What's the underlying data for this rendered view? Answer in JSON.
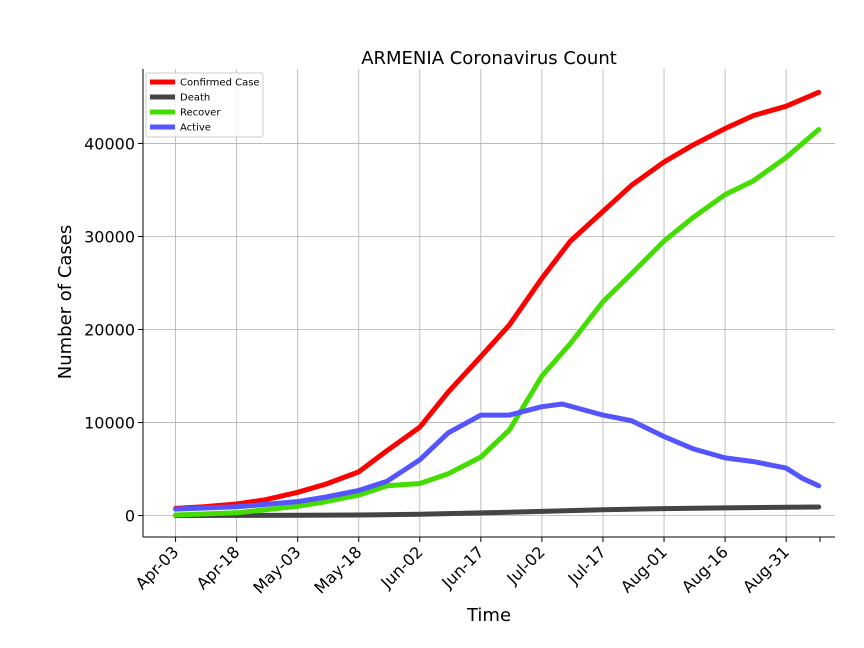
{
  "chart_data": {
    "type": "line",
    "title": "ARMENIA Coronavirus Count",
    "xlabel": "Time",
    "ylabel": "Number of Cases",
    "x_start": "2020-04-03",
    "x_end": "2020-09-08",
    "x_ticks": [
      "Apr-03",
      "Apr-18",
      "May-03",
      "May-18",
      "Jun-02",
      "Jun-17",
      "Jul-02",
      "Jul-17",
      "Aug-01",
      "Aug-16",
      "Aug-31"
    ],
    "x_tick_dates": [
      "2020-04-03",
      "2020-04-18",
      "2020-05-03",
      "2020-05-18",
      "2020-06-02",
      "2020-06-17",
      "2020-07-02",
      "2020-07-17",
      "2020-08-01",
      "2020-08-16",
      "2020-08-31"
    ],
    "y_ticks": [
      0,
      10000,
      20000,
      30000,
      40000
    ],
    "y_tick_labels": [
      "0",
      "10000",
      "20000",
      "30000",
      "40000"
    ],
    "ylim": [
      -2300,
      48000
    ],
    "xlim": [
      "2020-03-26",
      "2020-09-12"
    ],
    "grid": true,
    "legend_position": "top-left",
    "series": [
      {
        "name": "Confirmed Case",
        "color": "#ff0000",
        "points": [
          [
            "2020-04-03",
            770
          ],
          [
            "2020-04-10",
            950
          ],
          [
            "2020-04-18",
            1250
          ],
          [
            "2020-04-25",
            1700
          ],
          [
            "2020-05-03",
            2500
          ],
          [
            "2020-05-10",
            3400
          ],
          [
            "2020-05-18",
            4700
          ],
          [
            "2020-05-25",
            7000
          ],
          [
            "2020-06-02",
            9500
          ],
          [
            "2020-06-09",
            13300
          ],
          [
            "2020-06-17",
            17100
          ],
          [
            "2020-06-24",
            20500
          ],
          [
            "2020-07-02",
            25500
          ],
          [
            "2020-07-09",
            29500
          ],
          [
            "2020-07-17",
            32700
          ],
          [
            "2020-07-24",
            35500
          ],
          [
            "2020-08-01",
            38000
          ],
          [
            "2020-08-08",
            39800
          ],
          [
            "2020-08-16",
            41600
          ],
          [
            "2020-08-23",
            43000
          ],
          [
            "2020-08-31",
            44000
          ],
          [
            "2020-09-08",
            45500
          ]
        ]
      },
      {
        "name": "Death",
        "color": "#444444",
        "points": [
          [
            "2020-04-03",
            7
          ],
          [
            "2020-04-18",
            20
          ],
          [
            "2020-05-03",
            35
          ],
          [
            "2020-05-18",
            60
          ],
          [
            "2020-06-02",
            150
          ],
          [
            "2020-06-17",
            290
          ],
          [
            "2020-07-02",
            450
          ],
          [
            "2020-07-17",
            620
          ],
          [
            "2020-08-01",
            750
          ],
          [
            "2020-08-16",
            830
          ],
          [
            "2020-08-31",
            900
          ],
          [
            "2020-09-08",
            920
          ]
        ]
      },
      {
        "name": "Recover",
        "color": "#44dd00",
        "points": [
          [
            "2020-04-03",
            60
          ],
          [
            "2020-04-18",
            300
          ],
          [
            "2020-05-03",
            1000
          ],
          [
            "2020-05-10",
            1500
          ],
          [
            "2020-05-18",
            2200
          ],
          [
            "2020-05-25",
            3200
          ],
          [
            "2020-06-02",
            3450
          ],
          [
            "2020-06-09",
            4500
          ],
          [
            "2020-06-17",
            6300
          ],
          [
            "2020-06-24",
            9200
          ],
          [
            "2020-07-02",
            15000
          ],
          [
            "2020-07-09",
            18500
          ],
          [
            "2020-07-17",
            23000
          ],
          [
            "2020-07-24",
            26000
          ],
          [
            "2020-08-01",
            29500
          ],
          [
            "2020-08-08",
            32000
          ],
          [
            "2020-08-16",
            34500
          ],
          [
            "2020-08-23",
            36000
          ],
          [
            "2020-08-31",
            38500
          ],
          [
            "2020-09-08",
            41500
          ]
        ]
      },
      {
        "name": "Active",
        "color": "#5555ff",
        "points": [
          [
            "2020-04-03",
            700
          ],
          [
            "2020-04-18",
            950
          ],
          [
            "2020-05-03",
            1500
          ],
          [
            "2020-05-10",
            2000
          ],
          [
            "2020-05-18",
            2700
          ],
          [
            "2020-05-25",
            3700
          ],
          [
            "2020-06-02",
            6000
          ],
          [
            "2020-06-09",
            8900
          ],
          [
            "2020-06-17",
            10800
          ],
          [
            "2020-06-24",
            10800
          ],
          [
            "2020-07-02",
            11700
          ],
          [
            "2020-07-07",
            12000
          ],
          [
            "2020-07-17",
            10800
          ],
          [
            "2020-07-24",
            10200
          ],
          [
            "2020-08-01",
            8500
          ],
          [
            "2020-08-08",
            7200
          ],
          [
            "2020-08-16",
            6200
          ],
          [
            "2020-08-23",
            5800
          ],
          [
            "2020-08-31",
            5100
          ],
          [
            "2020-09-04",
            4000
          ],
          [
            "2020-09-08",
            3200
          ]
        ]
      }
    ]
  }
}
